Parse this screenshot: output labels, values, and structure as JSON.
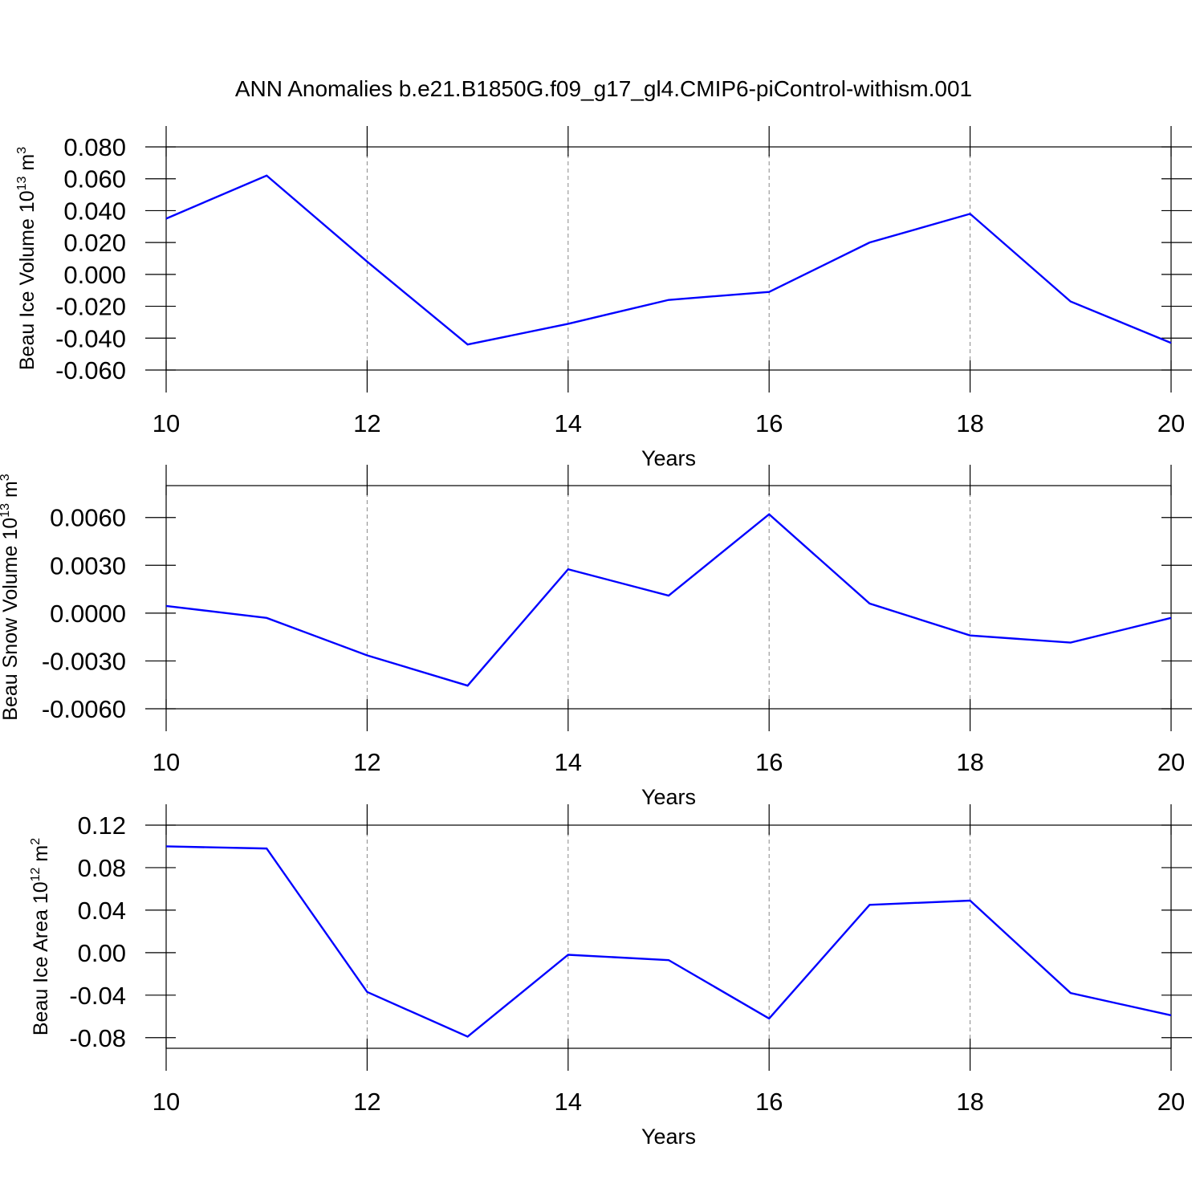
{
  "title": "ANN Anomalies b.e21.B1850G.f09_g17_gl4.CMIP6-piControl-withism.001",
  "chart_data": [
    {
      "type": "line",
      "ylabel": {
        "text": "Beau Ice Volume 10",
        "exp": "13",
        "unit": " m",
        "unit_exp": "3"
      },
      "xlabel": "Years",
      "x": [
        10,
        11,
        12,
        13,
        14,
        15,
        16,
        17,
        18,
        19,
        20
      ],
      "series": [
        {
          "color": "#0000ff",
          "values": [
            0.035,
            0.062,
            0.008,
            -0.044,
            -0.031,
            -0.016,
            -0.011,
            0.02,
            0.038,
            -0.017,
            -0.043
          ]
        }
      ],
      "xlim": [
        10,
        20
      ],
      "xticks": [
        10,
        12,
        14,
        16,
        18,
        20
      ],
      "ylim": [
        -0.06,
        0.08
      ],
      "yticks": [
        {
          "value": -0.06,
          "label": "-0.060"
        },
        {
          "value": -0.04,
          "label": "-0.040"
        },
        {
          "value": -0.02,
          "label": "-0.020"
        },
        {
          "value": 0,
          "label": "0.000"
        },
        {
          "value": 0.02,
          "label": "0.020"
        },
        {
          "value": 0.04,
          "label": "0.040"
        },
        {
          "value": 0.06,
          "label": "0.060"
        },
        {
          "value": 0.08,
          "label": "0.080"
        }
      ],
      "grid": true
    },
    {
      "type": "line",
      "ylabel": {
        "text": "Beau Snow Volume 10",
        "exp": "13",
        "unit": " m",
        "unit_exp": "3"
      },
      "xlabel": "Years",
      "x": [
        10,
        11,
        12,
        13,
        14,
        15,
        16,
        17,
        18,
        19,
        20
      ],
      "series": [
        {
          "color": "#0000ff",
          "values": [
            0.00045,
            -0.0003,
            -0.00265,
            -0.00455,
            0.00275,
            0.0011,
            0.0062,
            0.0006,
            -0.0014,
            -0.00185,
            -0.0003
          ]
        }
      ],
      "xlim": [
        10,
        20
      ],
      "xticks": [
        10,
        12,
        14,
        16,
        18,
        20
      ],
      "ylim": [
        -0.006,
        0.008
      ],
      "yticks": [
        {
          "value": -0.006,
          "label": "-0.0060"
        },
        {
          "value": -0.003,
          "label": "-0.0030"
        },
        {
          "value": 0,
          "label": "0.0000"
        },
        {
          "value": 0.003,
          "label": "0.0030"
        },
        {
          "value": 0.006,
          "label": "0.0060"
        }
      ],
      "grid": true
    },
    {
      "type": "line",
      "ylabel": {
        "text": "Beau Ice Area 10",
        "exp": "12",
        "unit": " m",
        "unit_exp": "2"
      },
      "xlabel": "Years",
      "x": [
        10,
        11,
        12,
        13,
        14,
        15,
        16,
        17,
        18,
        19,
        20
      ],
      "series": [
        {
          "color": "#0000ff",
          "values": [
            0.1,
            0.098,
            -0.037,
            -0.079,
            -0.002,
            -0.007,
            -0.062,
            0.045,
            0.049,
            -0.038,
            -0.059
          ]
        }
      ],
      "xlim": [
        10,
        20
      ],
      "xticks": [
        10,
        12,
        14,
        16,
        18,
        20
      ],
      "ylim": [
        -0.09,
        0.12
      ],
      "yticks": [
        -0.08,
        -0.04,
        {
          "value": 0,
          "label": "0.00"
        },
        0.04,
        0.08,
        0.12
      ],
      "grid": true
    }
  ]
}
